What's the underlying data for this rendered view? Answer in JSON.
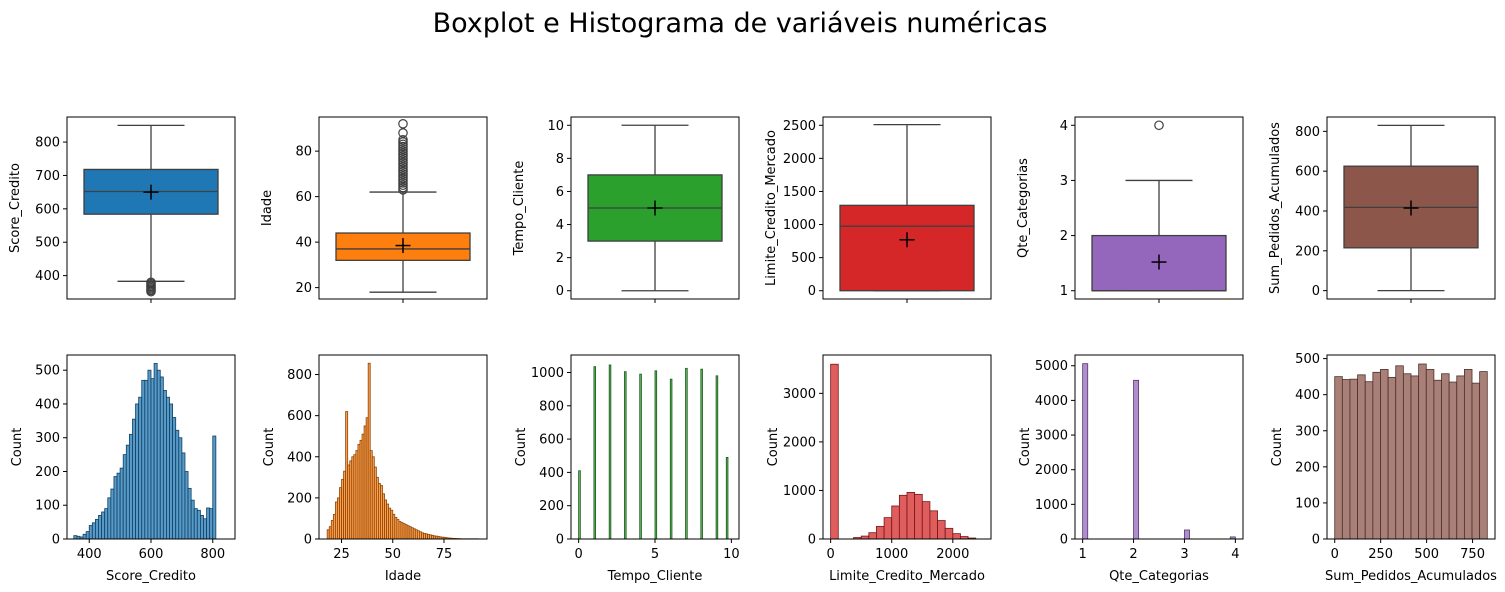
{
  "figure": {
    "title": "Boxplot e Histograma de variáveis numéricas"
  },
  "chart_data": [
    {
      "type": "box",
      "variable": "Score_Credito",
      "ylabel": "Score_Credito",
      "color": "#1f77b4",
      "ylim": [
        330,
        875
      ],
      "yticks": [
        400,
        500,
        600,
        700,
        800
      ],
      "whisker_low": 383,
      "q1": 584,
      "median": 652,
      "q3": 718,
      "whisker_high": 850,
      "mean": 650,
      "outliers": [
        380,
        376,
        372,
        368,
        364,
        360,
        356,
        352
      ]
    },
    {
      "type": "box",
      "variable": "Idade",
      "ylabel": "Idade",
      "color": "#ff7f0e",
      "ylim": [
        15,
        95
      ],
      "yticks": [
        20,
        40,
        60,
        80
      ],
      "whisker_low": 18,
      "q1": 32,
      "median": 37,
      "q3": 44,
      "whisker_high": 62,
      "mean": 38.5,
      "outliers": [
        63,
        64,
        65,
        66,
        67,
        68,
        69,
        70,
        71,
        72,
        73,
        74,
        75,
        76,
        77,
        78,
        79,
        80,
        81,
        82,
        83,
        84,
        85,
        88,
        92
      ]
    },
    {
      "type": "box",
      "variable": "Tempo_Cliente",
      "ylabel": "Tempo_Cliente",
      "color": "#2ca02c",
      "ylim": [
        -0.5,
        10.5
      ],
      "yticks": [
        0,
        2,
        4,
        6,
        8,
        10
      ],
      "whisker_low": 0,
      "q1": 3,
      "median": 5,
      "q3": 7,
      "whisker_high": 10,
      "mean": 5.0,
      "outliers": []
    },
    {
      "type": "box",
      "variable": "Limite_Credito_Mercado",
      "ylabel": "Limite_Credito_Mercado",
      "color": "#d62728",
      "ylim": [
        -125,
        2625
      ],
      "yticks": [
        0,
        500,
        1000,
        1500,
        2000,
        2500
      ],
      "whisker_low": 0,
      "q1": 0,
      "median": 975,
      "q3": 1290,
      "whisker_high": 2510,
      "mean": 770,
      "outliers": []
    },
    {
      "type": "box",
      "variable": "Qte_Categorias",
      "ylabel": "Qte_Categorias",
      "color": "#9467bd",
      "ylim": [
        0.85,
        4.15
      ],
      "yticks": [
        1,
        2,
        3,
        4
      ],
      "whisker_low": 1,
      "q1": 1,
      "median": 1,
      "q3": 2,
      "whisker_high": 3,
      "mean": 1.52,
      "outliers": [
        4
      ]
    },
    {
      "type": "box",
      "variable": "Sum_Pedidos_Acumulados",
      "ylabel": "Sum_Pedidos_Acumulados",
      "color": "#8c564b",
      "ylim": [
        -42,
        872
      ],
      "yticks": [
        0,
        200,
        400,
        600,
        800
      ],
      "whisker_low": 0,
      "q1": 215,
      "median": 418,
      "q3": 625,
      "whisker_high": 830,
      "mean": 415,
      "outliers": []
    },
    {
      "type": "histogram",
      "variable": "Score_Credito",
      "xlabel": "Score_Credito",
      "ylabel": "Count",
      "color": "#1f77b4",
      "xlim": [
        328,
        872
      ],
      "ylim": [
        0,
        545
      ],
      "xticks": [
        400,
        600,
        800
      ],
      "yticks": [
        0,
        100,
        200,
        300,
        400,
        500
      ],
      "bin_start": 350,
      "bin_width": 10,
      "counts": [
        10,
        8,
        6,
        14,
        22,
        40,
        48,
        58,
        70,
        80,
        90,
        122,
        148,
        185,
        195,
        210,
        250,
        278,
        310,
        355,
        400,
        420,
        470,
        470,
        500,
        475,
        520,
        500,
        480,
        440,
        420,
        400,
        360,
        322,
        300,
        255,
        200,
        150,
        115,
        90,
        85,
        70,
        60,
        92,
        90,
        305
      ]
    },
    {
      "type": "histogram",
      "variable": "Idade",
      "xlabel": "Idade",
      "ylabel": "Count",
      "color": "#ff7f0e",
      "xlim": [
        14,
        96
      ],
      "ylim": [
        0,
        895
      ],
      "xticks": [
        25,
        50,
        75
      ],
      "yticks": [
        0,
        200,
        400,
        600,
        800
      ],
      "bin_start": 18,
      "bin_width": 1,
      "counts": [
        45,
        60,
        90,
        120,
        180,
        200,
        250,
        290,
        330,
        620,
        360,
        380,
        400,
        410,
        430,
        460,
        480,
        510,
        550,
        590,
        855,
        430,
        400,
        350,
        300,
        270,
        260,
        220,
        190,
        170,
        150,
        140,
        120,
        105,
        95,
        85,
        80,
        75,
        70,
        65,
        60,
        55,
        50,
        45,
        40,
        35,
        30,
        27,
        25,
        22,
        20,
        18,
        15,
        14,
        12,
        10,
        9,
        8,
        6,
        5,
        4,
        3,
        3,
        2,
        2,
        1,
        1,
        1,
        1,
        1,
        1,
        1,
        1,
        1
      ]
    },
    {
      "type": "histogram",
      "variable": "Tempo_Cliente",
      "xlabel": "Tempo_Cliente",
      "ylabel": "Count",
      "color": "#2ca02c",
      "xlim": [
        -0.5,
        10.5
      ],
      "ylim": [
        0,
        1105
      ],
      "xticks": [
        0,
        5,
        10
      ],
      "yticks": [
        0,
        200,
        400,
        600,
        800,
        1000
      ],
      "bin_start": 0,
      "bin_width": 0.3333333333,
      "counts": [
        410,
        0,
        0,
        1035,
        0,
        0,
        1045,
        0,
        0,
        1005,
        0,
        0,
        990,
        0,
        0,
        1010,
        0,
        0,
        960,
        0,
        0,
        1025,
        0,
        0,
        1020,
        0,
        0,
        980,
        0,
        490
      ],
      "bar_width_fraction": 0.3333333333
    },
    {
      "type": "histogram",
      "variable": "Limite_Credito_Mercado",
      "xlabel": "Limite_Credito_Mercado",
      "ylabel": "Count",
      "color": "#d62728",
      "xlim": [
        -125,
        2625
      ],
      "ylim": [
        0,
        3790
      ],
      "xticks": [
        0,
        1000,
        2000
      ],
      "yticks": [
        0,
        1000,
        2000,
        3000
      ],
      "bin_start": 0,
      "bin_width": 125,
      "counts": [
        3600,
        0,
        0,
        30,
        60,
        130,
        260,
        440,
        680,
        900,
        960,
        920,
        770,
        580,
        380,
        220,
        110,
        50,
        20
      ]
    },
    {
      "type": "histogram",
      "variable": "Qte_Categorias",
      "xlabel": "Qte_Categorias",
      "ylabel": "Count",
      "color": "#9467bd",
      "xlim": [
        0.85,
        4.15
      ],
      "ylim": [
        0,
        5310
      ],
      "xticks": [
        1,
        2,
        3,
        4
      ],
      "yticks": [
        0,
        1000,
        2000,
        3000,
        4000,
        5000
      ],
      "bin_start": 1,
      "bin_width": 0.1,
      "counts": [
        5060,
        0,
        0,
        0,
        0,
        0,
        0,
        0,
        0,
        0,
        4580,
        0,
        0,
        0,
        0,
        0,
        0,
        0,
        0,
        0,
        260,
        0,
        0,
        0,
        0,
        0,
        0,
        0,
        0,
        60
      ]
    },
    {
      "type": "histogram",
      "variable": "Sum_Pedidos_Acumulados",
      "xlabel": "Sum_Pedidos_Acumulados",
      "ylabel": "Count",
      "color": "#8c564b",
      "xlim": [
        -42,
        872
      ],
      "ylim": [
        0,
        510
      ],
      "xticks": [
        0,
        250,
        500,
        750
      ],
      "yticks": [
        0,
        100,
        200,
        300,
        400,
        500
      ],
      "bin_start": 0,
      "bin_width": 41.5,
      "counts": [
        450,
        442,
        443,
        455,
        436,
        462,
        470,
        448,
        480,
        458,
        452,
        485,
        470,
        440,
        458,
        435,
        452,
        470,
        432,
        464
      ]
    }
  ]
}
